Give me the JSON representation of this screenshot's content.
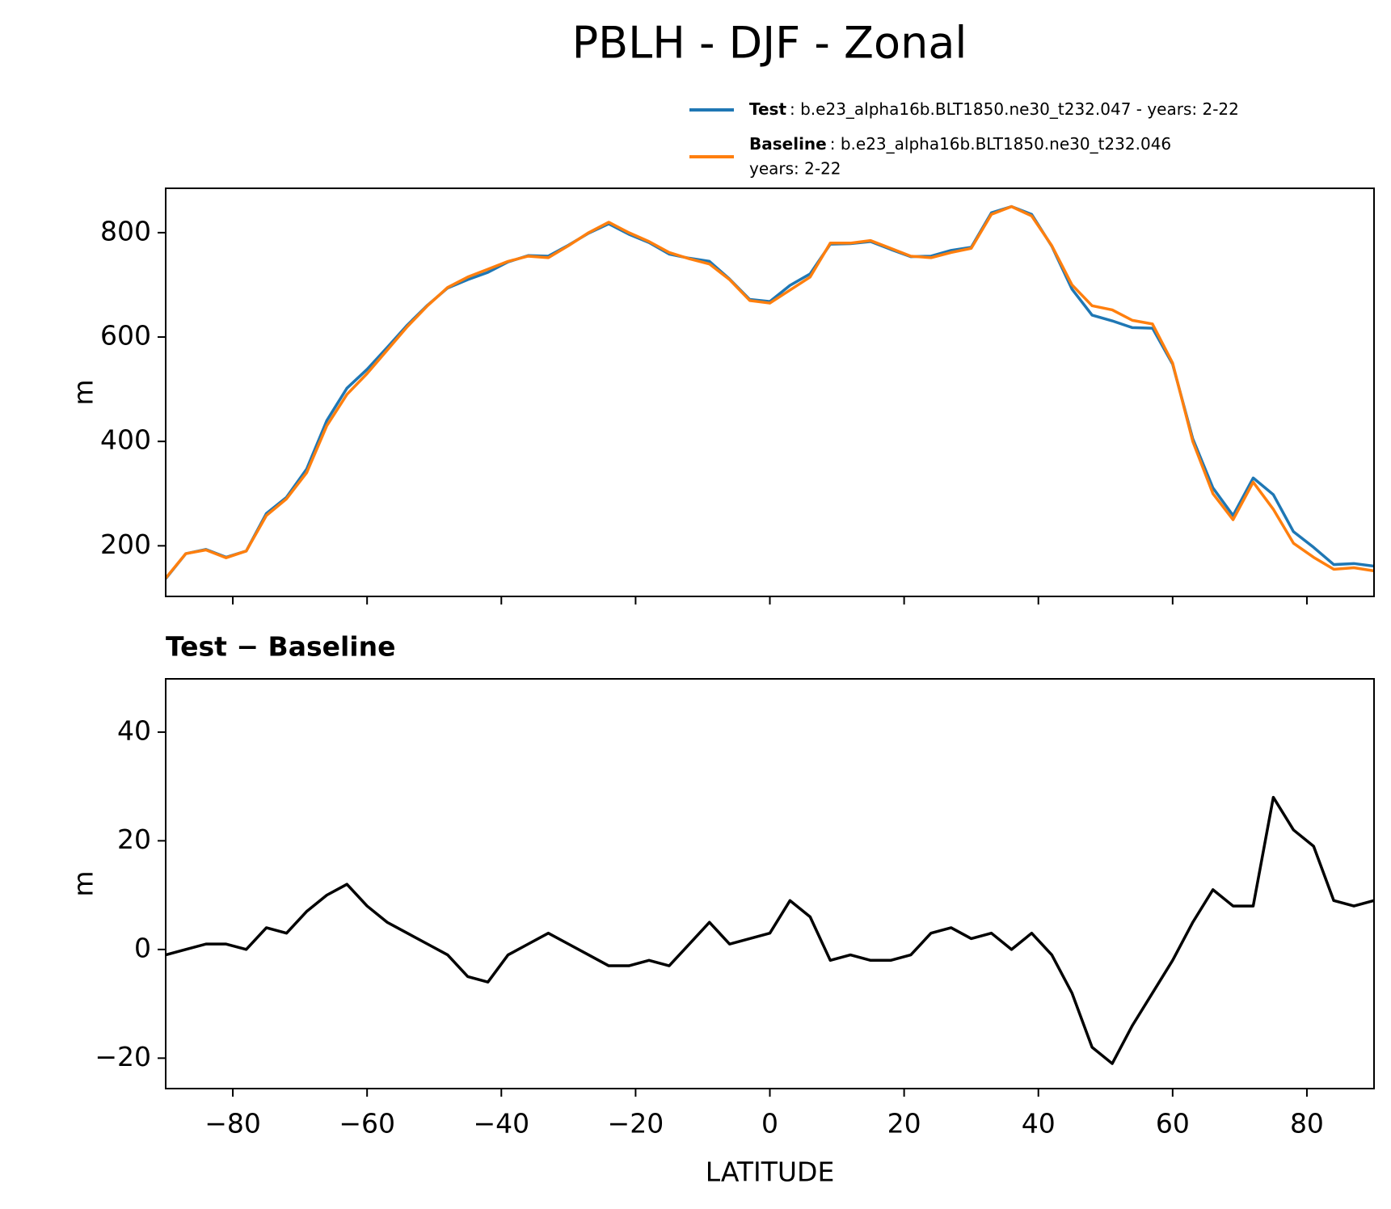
{
  "title": "PBLH - DJF - Zonal",
  "chart_data": [
    {
      "type": "line",
      "ylabel": "m",
      "legend": "upper right",
      "x": [
        -90,
        -87,
        -84,
        -81,
        -78,
        -75,
        -72,
        -69,
        -66,
        -63,
        -60,
        -57,
        -54,
        -51,
        -48,
        -45,
        -42,
        -39,
        -36,
        -33,
        -30,
        -27,
        -24,
        -21,
        -18,
        -15,
        -12,
        -9,
        -6,
        -3,
        0,
        3,
        6,
        9,
        12,
        15,
        18,
        21,
        24,
        27,
        30,
        33,
        36,
        39,
        42,
        45,
        48,
        51,
        54,
        57,
        60,
        63,
        66,
        69,
        72,
        75,
        78,
        81,
        84,
        87,
        90
      ],
      "series": [
        {
          "name": "Test",
          "description": [
            ": b.e23_alpha16b.BLT1850.ne30_t232.047 - years: 2-22"
          ],
          "color": "#1f77b4",
          "values": [
            137,
            185,
            193,
            178,
            190,
            262,
            293,
            347,
            440,
            502,
            538,
            580,
            623,
            661,
            694,
            710,
            724,
            744,
            756,
            755,
            776,
            799,
            817,
            797,
            781,
            759,
            751,
            745,
            711,
            672,
            668,
            699,
            721,
            778,
            779,
            783,
            768,
            754,
            755,
            766,
            772,
            838,
            850,
            835,
            774,
            692,
            642,
            631,
            618,
            617,
            548,
            405,
            311,
            258,
            330,
            298,
            227,
            197,
            164,
            166,
            161
          ]
        },
        {
          "name": "Baseline",
          "description": [
            ": b.e23_alpha16b.BLT1850.ne30_t232.046",
            "years: 2-22"
          ],
          "color": "#ff7f0e",
          "values": [
            138,
            185,
            192,
            177,
            190,
            258,
            290,
            340,
            430,
            490,
            530,
            575,
            620,
            660,
            695,
            715,
            730,
            745,
            755,
            752,
            775,
            800,
            820,
            800,
            783,
            762,
            750,
            740,
            710,
            670,
            665,
            690,
            715,
            780,
            780,
            785,
            770,
            755,
            752,
            762,
            770,
            835,
            850,
            832,
            775,
            700,
            660,
            652,
            632,
            625,
            550,
            400,
            300,
            250,
            322,
            270,
            205,
            178,
            155,
            158,
            152
          ]
        }
      ],
      "xlim": [
        -90,
        90
      ],
      "xticks": [
        -80,
        -60,
        -40,
        -20,
        0,
        20,
        40,
        60,
        80
      ],
      "ylim": [
        103,
        885
      ],
      "yticks": [
        200,
        400,
        600,
        800
      ]
    },
    {
      "type": "line",
      "title": "Test − Baseline",
      "xlabel": "LATITUDE",
      "ylabel": "m",
      "x": [
        -90,
        -87,
        -84,
        -81,
        -78,
        -75,
        -72,
        -69,
        -66,
        -63,
        -60,
        -57,
        -54,
        -51,
        -48,
        -45,
        -42,
        -39,
        -36,
        -33,
        -30,
        -27,
        -24,
        -21,
        -18,
        -15,
        -12,
        -9,
        -6,
        -3,
        0,
        3,
        6,
        9,
        12,
        15,
        18,
        21,
        24,
        27,
        30,
        33,
        36,
        39,
        42,
        45,
        48,
        51,
        54,
        57,
        60,
        63,
        66,
        69,
        72,
        75,
        78,
        81,
        84,
        87,
        90
      ],
      "series": [
        {
          "color": "#000000",
          "values": [
            -1,
            0,
            1,
            1,
            0,
            4,
            3,
            7,
            10,
            12,
            8,
            5,
            3,
            1,
            -1,
            -5,
            -6,
            -1,
            1,
            3,
            1,
            -1,
            -3,
            -3,
            -2,
            -3,
            1,
            5,
            1,
            2,
            3,
            9,
            6,
            -2,
            -1,
            -2,
            -2,
            -1,
            3,
            4,
            2,
            3,
            0,
            3,
            -1,
            -8,
            -18,
            -21,
            -14,
            -8,
            -2,
            5,
            11,
            8,
            8,
            28,
            22,
            19,
            9,
            8,
            9
          ]
        }
      ],
      "xlim": [
        -90,
        90
      ],
      "xticks": [
        {
          "value": -80,
          "label": "−80"
        },
        {
          "value": -60,
          "label": "−60"
        },
        {
          "value": -40,
          "label": "−40"
        },
        {
          "value": -20,
          "label": "−20"
        },
        0,
        20,
        40,
        60,
        80
      ],
      "ylim": [
        -25.6,
        49.8
      ],
      "yticks": [
        {
          "value": -20,
          "label": "−20"
        },
        0,
        20,
        40
      ]
    }
  ]
}
